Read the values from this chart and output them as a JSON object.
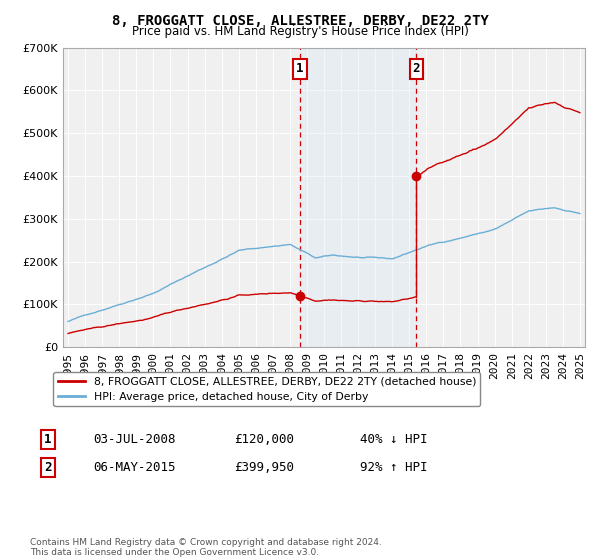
{
  "title": "8, FROGGATT CLOSE, ALLESTREE, DERBY, DE22 2TY",
  "subtitle": "Price paid vs. HM Land Registry's House Price Index (HPI)",
  "hpi_label": "HPI: Average price, detached house, City of Derby",
  "price_label": "8, FROGGATT CLOSE, ALLESTREE, DERBY, DE22 2TY (detached house)",
  "transaction1_date": "03-JUL-2008",
  "transaction1_price": 120000,
  "transaction1_note": "40% ↓ HPI",
  "transaction2_date": "06-MAY-2015",
  "transaction2_price": 399950,
  "transaction2_note": "92% ↑ HPI",
  "footer": "Contains HM Land Registry data © Crown copyright and database right 2024.\nThis data is licensed under the Open Government Licence v3.0.",
  "hpi_color": "#6baed6",
  "price_color": "#cc0000",
  "shade_color": "#dbeaf7",
  "ylim": [
    0,
    700000
  ],
  "yticks": [
    0,
    100000,
    200000,
    300000,
    400000,
    500000,
    600000,
    700000
  ],
  "bg_color": "#f0f0f0"
}
